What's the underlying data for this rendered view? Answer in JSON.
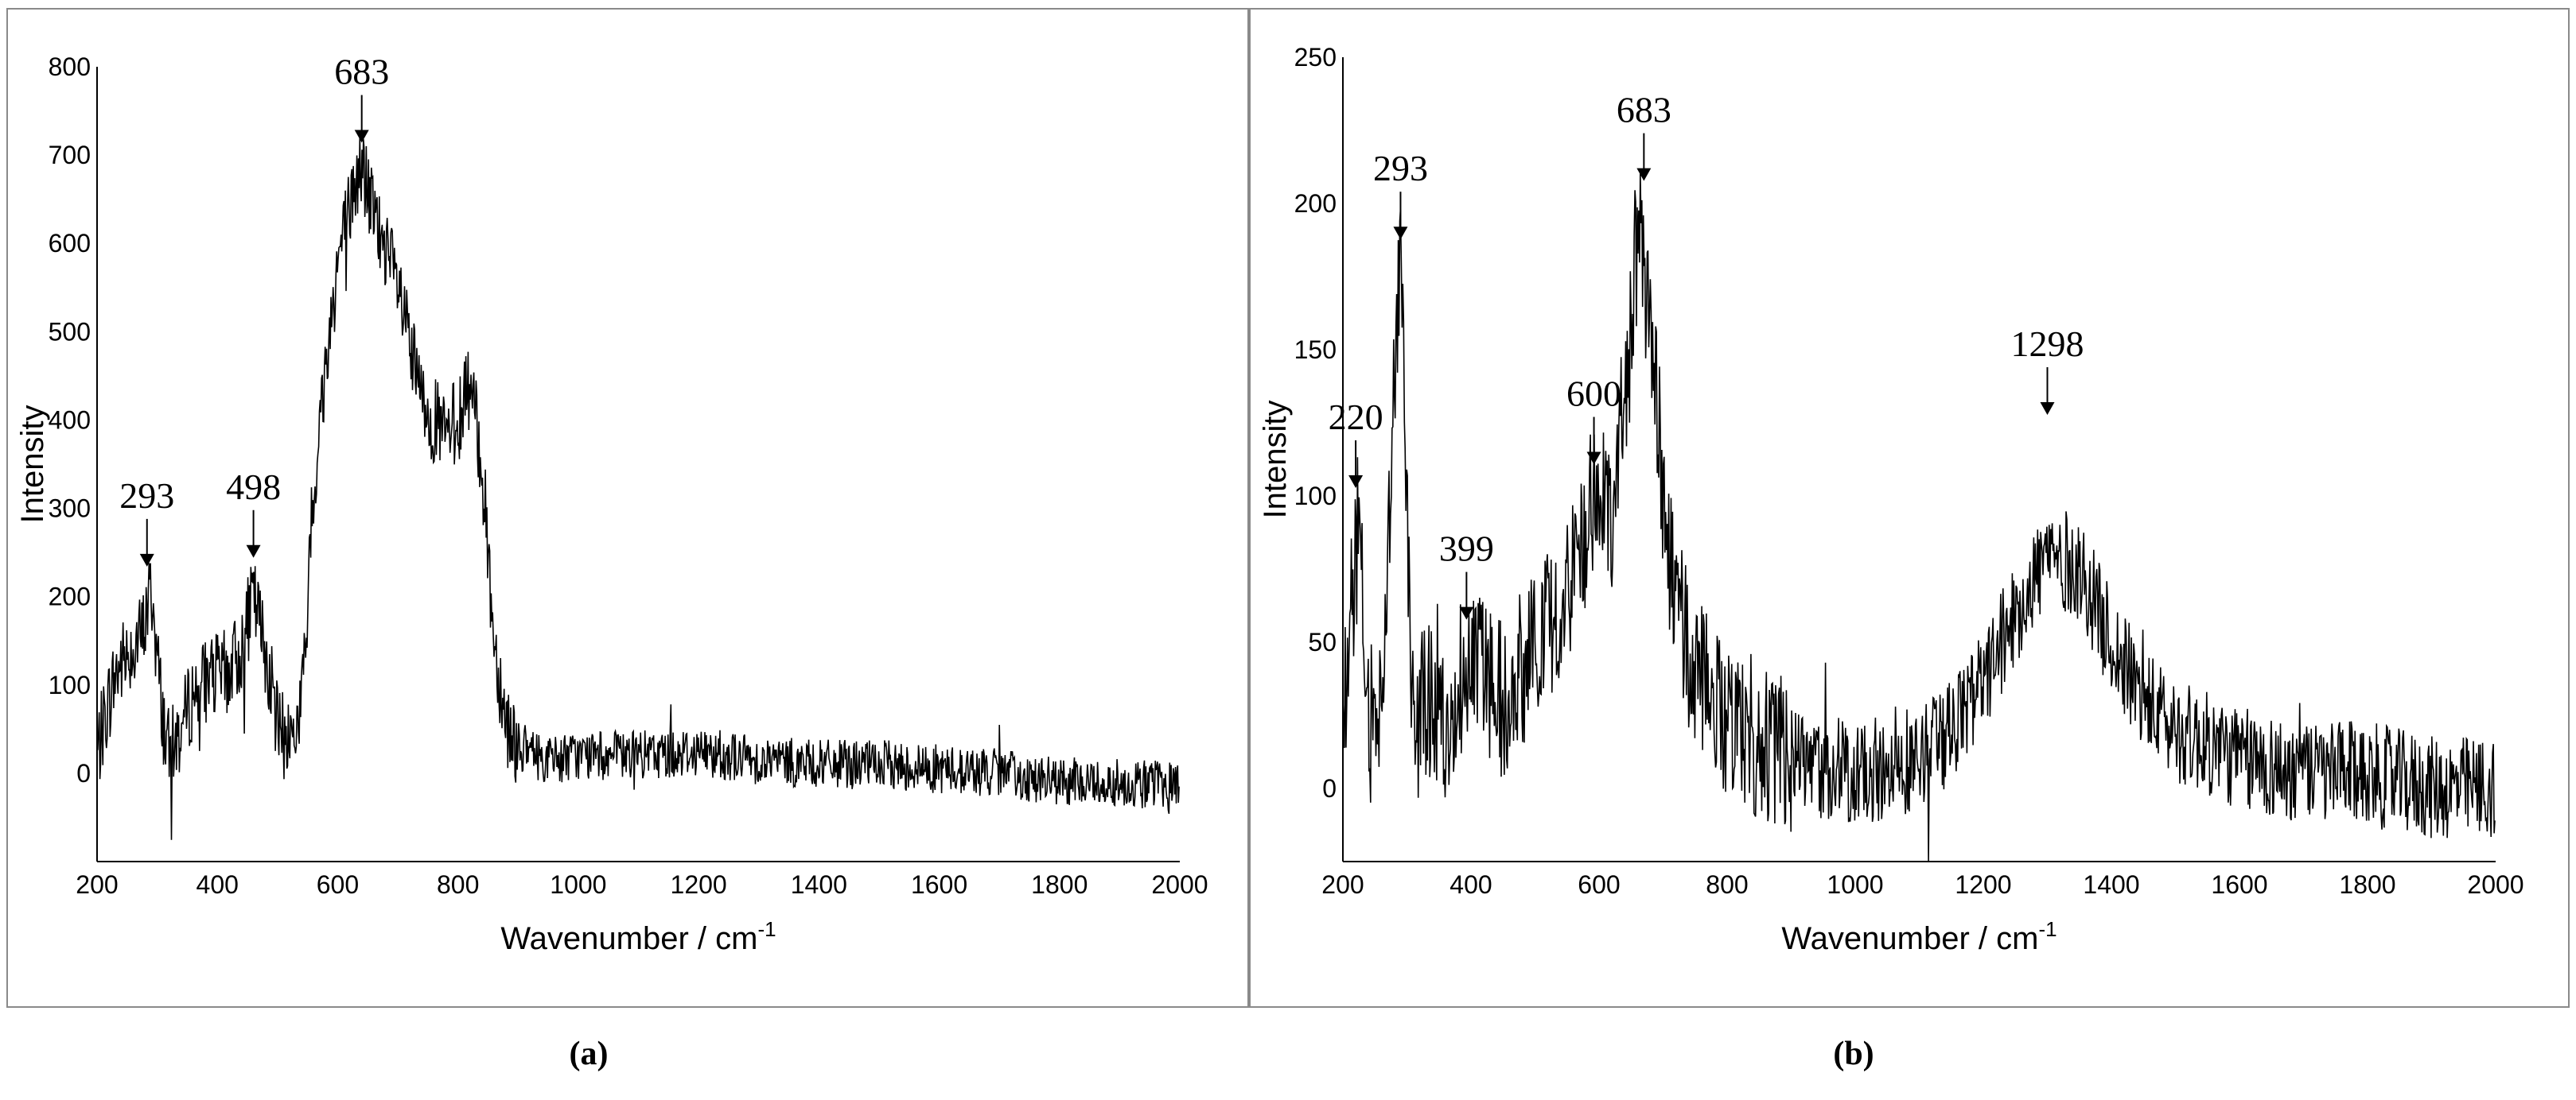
{
  "chart_data": [
    {
      "type": "line",
      "xlabel": "Wavenumber / cm",
      "xlabel_superscript": "-1",
      "ylabel": "Intensity",
      "xlim": [
        200,
        2000
      ],
      "ylim": [
        -100,
        800
      ],
      "xticks": [
        "200",
        "400",
        "600",
        "800",
        "1000",
        "1200",
        "1400",
        "1600",
        "1800",
        "2000"
      ],
      "yticks": [
        "0",
        "100",
        "200",
        "300",
        "400",
        "500",
        "600",
        "700",
        "800"
      ],
      "grid": false,
      "line_color": "#000000",
      "annotations": [
        {
          "label": "293",
          "x": 283,
          "y": 225
        },
        {
          "label": "498",
          "x": 460,
          "y": 235
        },
        {
          "label": "683",
          "x": 640,
          "y": 705
        }
      ],
      "series": [
        {
          "x": [
            200,
            215,
            230,
            245,
            260,
            275,
            290,
            300,
            310,
            320,
            340,
            360,
            380,
            400,
            420,
            440,
            460,
            480,
            500,
            510,
            520,
            530,
            545,
            560,
            580,
            600,
            620,
            640,
            660,
            680,
            700,
            720,
            740,
            760,
            780,
            800,
            820,
            840,
            860,
            880,
            900,
            950,
            1000,
            1100,
            1200,
            1300,
            1400,
            1500,
            1600,
            1700,
            1800,
            1900,
            2000
          ],
          "y": [
            20,
            70,
            110,
            130,
            145,
            155,
            210,
            130,
            60,
            20,
            50,
            90,
            105,
            110,
            115,
            140,
            200,
            140,
            55,
            40,
            45,
            40,
            120,
            320,
            460,
            580,
            640,
            690,
            630,
            590,
            550,
            480,
            420,
            400,
            380,
            400,
            440,
            350,
            150,
            60,
            30,
            15,
            20,
            20,
            25,
            15,
            10,
            10,
            5,
            0,
            -10,
            -10,
            -15
          ]
        }
      ]
    },
    {
      "type": "line",
      "xlabel": "Wavenumber / cm",
      "xlabel_superscript": "-1",
      "ylabel": "Intensity",
      "xlim": [
        200,
        2000
      ],
      "ylim": [
        -25,
        250
      ],
      "xticks": [
        "200",
        "400",
        "600",
        "800",
        "1000",
        "1200",
        "1400",
        "1600",
        "1800",
        "2000"
      ],
      "yticks": [
        "0",
        "50",
        "100",
        "150",
        "200",
        "250"
      ],
      "grid": false,
      "line_color": "#000000",
      "annotations": [
        {
          "label": "220",
          "x": 220,
          "y": 100
        },
        {
          "label": "293",
          "x": 290,
          "y": 185
        },
        {
          "label": "399",
          "x": 393,
          "y": 55
        },
        {
          "label": "600",
          "x": 592,
          "y": 108
        },
        {
          "label": "683",
          "x": 670,
          "y": 205
        },
        {
          "label": "1298",
          "x": 1300,
          "y": 125
        }
      ],
      "series": [
        {
          "x": [
            200,
            215,
            225,
            240,
            260,
            280,
            290,
            300,
            310,
            330,
            350,
            380,
            400,
            420,
            450,
            480,
            500,
            520,
            550,
            580,
            600,
            620,
            640,
            660,
            680,
            700,
            720,
            750,
            800,
            900,
            1000,
            1100,
            1150,
            1200,
            1250,
            1300,
            1350,
            1400,
            1450,
            1500,
            1600,
            1700,
            1800,
            1900,
            2000
          ],
          "y": [
            20,
            70,
            90,
            20,
            30,
            140,
            180,
            90,
            20,
            30,
            20,
            35,
            50,
            40,
            30,
            40,
            50,
            55,
            70,
            90,
            100,
            95,
            130,
            190,
            160,
            100,
            60,
            40,
            25,
            10,
            5,
            10,
            20,
            35,
            60,
            80,
            75,
            50,
            30,
            20,
            10,
            5,
            5,
            0,
            0
          ]
        }
      ]
    }
  ],
  "captions": [
    "(a)",
    "(b)"
  ]
}
